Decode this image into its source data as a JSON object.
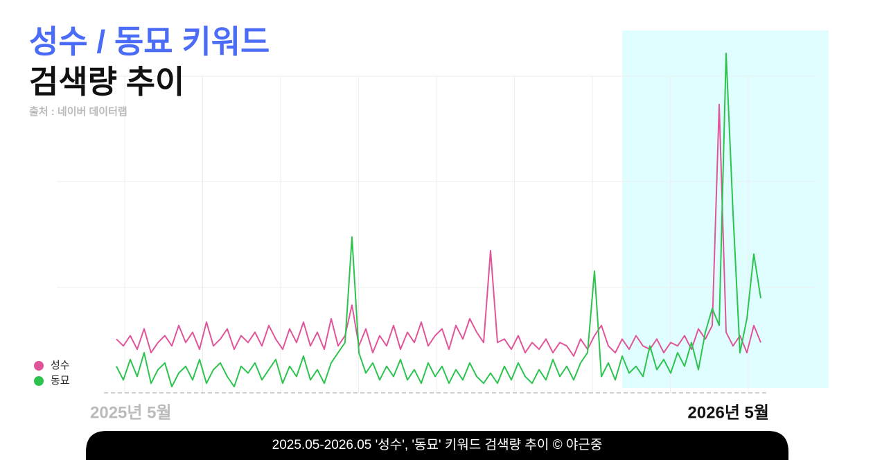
{
  "chart_data": {
    "type": "line",
    "title": "성수 / 동묘 키워드",
    "subtitle": "검색량 추이",
    "source": "출처 : 네이버 데이터랩",
    "x_labels": [
      "2025년 5월",
      "2026년 5월"
    ],
    "caption": "2025.05-2026.05 '성수', '동묘' 키워드 검색량 추이 © 야근중",
    "ylim": [
      0,
      100
    ],
    "series": [
      {
        "name": "성수",
        "color": "#e0559a",
        "values": [
          16,
          14,
          17,
          13,
          19,
          12,
          15,
          17,
          14,
          20,
          15,
          18,
          13,
          21,
          14,
          16,
          19,
          13,
          17,
          15,
          18,
          14,
          20,
          16,
          13,
          19,
          15,
          21,
          14,
          18,
          13,
          22,
          14,
          17,
          26,
          14,
          19,
          12,
          17,
          14,
          20,
          13,
          18,
          15,
          21,
          14,
          17,
          19,
          13,
          20,
          16,
          22,
          18,
          15,
          42,
          15,
          16,
          13,
          17,
          12,
          15,
          13,
          16,
          12,
          15,
          14,
          11,
          16,
          13,
          17,
          20,
          14,
          12,
          16,
          13,
          17,
          14,
          13,
          16,
          12,
          15,
          14,
          17,
          13,
          19,
          16,
          20,
          85,
          18,
          14,
          17,
          12,
          20,
          15
        ]
      },
      {
        "name": "동묘",
        "color": "#2cc44f",
        "values": [
          8,
          4,
          10,
          5,
          12,
          3,
          7,
          9,
          2,
          6,
          8,
          4,
          10,
          3,
          7,
          9,
          5,
          2,
          8,
          6,
          9,
          4,
          7,
          10,
          3,
          8,
          5,
          11,
          4,
          7,
          3,
          9,
          12,
          15,
          46,
          12,
          6,
          9,
          4,
          8,
          5,
          10,
          4,
          7,
          3,
          9,
          5,
          8,
          3,
          7,
          4,
          9,
          5,
          3,
          6,
          3,
          8,
          4,
          9,
          5,
          3,
          7,
          4,
          10,
          5,
          8,
          4,
          9,
          12,
          36,
          5,
          9,
          4,
          11,
          6,
          8,
          5,
          14,
          7,
          10,
          6,
          12,
          8,
          15,
          7,
          18,
          25,
          20,
          100,
          53,
          12,
          22,
          41,
          28
        ]
      }
    ]
  }
}
